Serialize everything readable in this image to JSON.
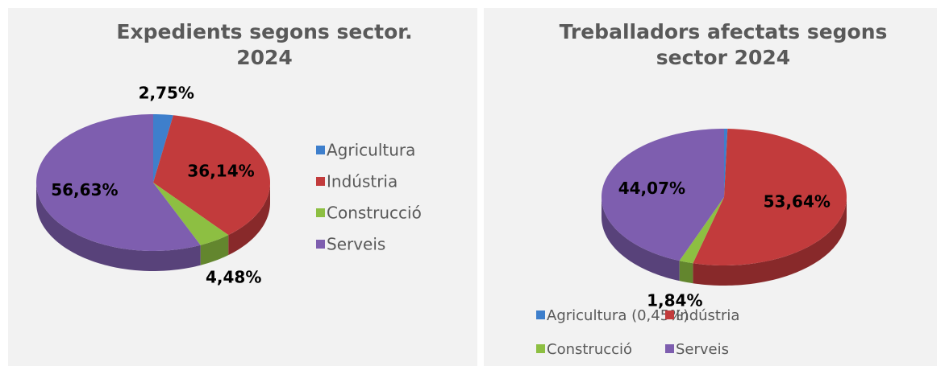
{
  "chart_data": [
    {
      "type": "pie",
      "title": "Expedients segons sector. 2024",
      "categories": [
        "Agricultura",
        "Indústria",
        "Construcció",
        "Serveis"
      ],
      "values": [
        2.75,
        36.14,
        4.48,
        56.63
      ],
      "value_labels": [
        "2,75%",
        "36,14%",
        "4,48%",
        "56,63%"
      ],
      "colors": [
        "#3e7fcc",
        "#c23b3c",
        "#8dbf42",
        "#7e5eaf"
      ],
      "legend": "right"
    },
    {
      "type": "pie",
      "title": "Treballadors afectats segons sector 2024",
      "categories": [
        "Agricultura (0,45%)",
        "Indústria",
        "Construcció",
        "Serveis"
      ],
      "values": [
        0.45,
        53.64,
        1.84,
        44.07
      ],
      "value_labels": [
        null,
        "53,64%",
        "1,84%",
        "44,07%"
      ],
      "colors": [
        "#3e7fcc",
        "#c23b3c",
        "#8dbf42",
        "#7e5eaf"
      ],
      "legend": "bottom"
    }
  ]
}
